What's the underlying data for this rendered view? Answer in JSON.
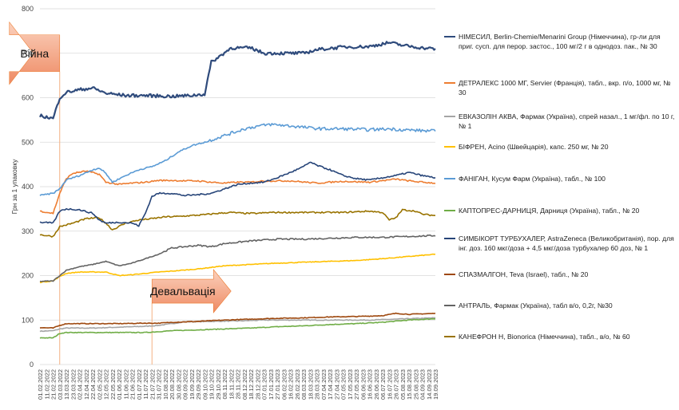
{
  "chart_data": {
    "type": "line",
    "ylabel": "Грн за 1 упаковку",
    "ylim": [
      0,
      800
    ],
    "yticks": [
      0,
      100,
      200,
      300,
      400,
      500,
      600,
      700,
      800
    ],
    "grid": "horizontal",
    "legend_position": "right",
    "x": [
      "01.02.2022",
      "11.02.2022",
      "21.02.2022",
      "03.03.2022",
      "13.03.2022",
      "23.03.2022",
      "02.04.2022",
      "12.04.2022",
      "22.04.2022",
      "02.05.2022",
      "12.05.2022",
      "22.05.2022",
      "01.06.2022",
      "11.06.2022",
      "21.06.2022",
      "01.07.2022",
      "11.07.2022",
      "21.07.2022",
      "31.07.2022",
      "10.08.2022",
      "20.08.2022",
      "30.08.2022",
      "09.09.2022",
      "19.09.2022",
      "29.09.2022",
      "09.10.2022",
      "19.10.2022",
      "29.10.2022",
      "08.11.2022",
      "18.11.2022",
      "28.11.2022",
      "08.12.2022",
      "18.12.2022",
      "28.12.2022",
      "07.01.2023",
      "17.01.2023",
      "27.01.2023",
      "06.02.2023",
      "16.02.2023",
      "26.02.2023",
      "08.03.2023",
      "18.03.2023",
      "28.03.2023",
      "07.04.2023",
      "17.04.2023",
      "27.04.2023",
      "07.05.2023",
      "17.05.2023",
      "27.05.2023",
      "06.06.2023",
      "16.06.2023",
      "26.06.2023",
      "06.07.2023",
      "16.07.2023",
      "26.07.2023",
      "05.08.2023",
      "15.08.2023",
      "25.08.2023",
      "04.09.2023",
      "14.09.2023",
      "19.09.2023"
    ],
    "annotations": [
      {
        "text": "Війна",
        "from": "03.03.2022",
        "to": "29.05.2022",
        "y": 700
      },
      {
        "text": "Девальвація",
        "from": "21.07.2022",
        "to": "18.11.2022",
        "y": 165
      }
    ],
    "series": [
      {
        "name": "НІМЕСИЛ, Berlin-Chemie/Menarini Group (Німеччина), гр-ли для приг. сусп. для перор. застос., 100 мг/2 г в однодоз. пак., № 30",
        "color": "#2f4b7c",
        "width": 2.2,
        "keypoints": [
          [
            0,
            560
          ],
          [
            2,
            553
          ],
          [
            3,
            600
          ],
          [
            4,
            612
          ],
          [
            6,
            618
          ],
          [
            8,
            622
          ],
          [
            10,
            610
          ],
          [
            13,
            605
          ],
          [
            16,
            605
          ],
          [
            20,
            603
          ],
          [
            23,
            605
          ],
          [
            25,
            608
          ],
          [
            26,
            680
          ],
          [
            27,
            690
          ],
          [
            29,
            712
          ],
          [
            32,
            712
          ],
          [
            34,
            700
          ],
          [
            37,
            700
          ],
          [
            40,
            700
          ],
          [
            42,
            708
          ],
          [
            46,
            714
          ],
          [
            50,
            715
          ],
          [
            53,
            724
          ],
          [
            55,
            718
          ],
          [
            58,
            712
          ],
          [
            60,
            710
          ]
        ]
      },
      {
        "name": "ДЕТРАЛЕКС 1000 МГ, Servier (Франція), табл., вкр. п/о, 1000 мг, № 30",
        "color": "#ed7d31",
        "width": 1.6,
        "keypoints": [
          [
            0,
            345
          ],
          [
            2,
            340
          ],
          [
            3,
            385
          ],
          [
            4,
            418
          ],
          [
            5,
            430
          ],
          [
            7,
            435
          ],
          [
            9,
            428
          ],
          [
            10,
            410
          ],
          [
            12,
            405
          ],
          [
            14,
            408
          ],
          [
            16,
            410
          ],
          [
            18,
            414
          ],
          [
            20,
            414
          ],
          [
            22,
            413
          ],
          [
            24,
            413
          ],
          [
            26,
            410
          ],
          [
            28,
            408
          ],
          [
            30,
            410
          ],
          [
            32,
            410
          ],
          [
            34,
            413
          ],
          [
            38,
            413
          ],
          [
            42,
            408
          ],
          [
            46,
            412
          ],
          [
            50,
            410
          ],
          [
            54,
            417
          ],
          [
            56,
            413
          ],
          [
            58,
            410
          ],
          [
            60,
            408
          ]
        ]
      },
      {
        "name": "ЕВКАЗОЛІН АКВА, Фармак (Україна), спрей назал., 1 мг/фл. по 10 г, № 1",
        "color": "#a5a5a5",
        "width": 1.6,
        "keypoints": [
          [
            0,
            75
          ],
          [
            2,
            76
          ],
          [
            3,
            80
          ],
          [
            4,
            82
          ],
          [
            8,
            82
          ],
          [
            12,
            84
          ],
          [
            16,
            86
          ],
          [
            18,
            88
          ],
          [
            20,
            92
          ],
          [
            22,
            96
          ],
          [
            26,
            97
          ],
          [
            30,
            98
          ],
          [
            34,
            100
          ],
          [
            38,
            100
          ],
          [
            42,
            100
          ],
          [
            46,
            100
          ],
          [
            50,
            100
          ],
          [
            54,
            102
          ],
          [
            58,
            104
          ],
          [
            60,
            105
          ]
        ]
      },
      {
        "name": "БІФРЕН, Acino (Швейцарія), капс. 250 мг, № 20",
        "color": "#ffc000",
        "width": 1.6,
        "keypoints": [
          [
            0,
            185
          ],
          [
            2,
            188
          ],
          [
            3,
            198
          ],
          [
            4,
            205
          ],
          [
            6,
            208
          ],
          [
            10,
            208
          ],
          [
            12,
            200
          ],
          [
            14,
            202
          ],
          [
            16,
            205
          ],
          [
            18,
            208
          ],
          [
            20,
            210
          ],
          [
            24,
            215
          ],
          [
            28,
            222
          ],
          [
            32,
            225
          ],
          [
            36,
            228
          ],
          [
            40,
            230
          ],
          [
            44,
            232
          ],
          [
            48,
            234
          ],
          [
            52,
            238
          ],
          [
            56,
            243
          ],
          [
            60,
            248
          ]
        ]
      },
      {
        "name": "ФАНІГАН, Кусум Фарм (Україна), табл., № 100",
        "color": "#5b9bd5",
        "width": 1.6,
        "keypoints": [
          [
            0,
            380
          ],
          [
            2,
            385
          ],
          [
            3,
            395
          ],
          [
            4,
            415
          ],
          [
            6,
            425
          ],
          [
            8,
            438
          ],
          [
            9,
            442
          ],
          [
            10,
            430
          ],
          [
            11,
            410
          ],
          [
            13,
            425
          ],
          [
            15,
            438
          ],
          [
            17,
            445
          ],
          [
            19,
            458
          ],
          [
            21,
            478
          ],
          [
            23,
            492
          ],
          [
            25,
            500
          ],
          [
            27,
            510
          ],
          [
            29,
            520
          ],
          [
            31,
            530
          ],
          [
            33,
            536
          ],
          [
            35,
            540
          ],
          [
            37,
            538
          ],
          [
            39,
            535
          ],
          [
            41,
            532
          ],
          [
            43,
            530
          ],
          [
            46,
            530
          ],
          [
            50,
            528
          ],
          [
            53,
            530
          ],
          [
            55,
            528
          ],
          [
            58,
            526
          ],
          [
            60,
            525
          ]
        ]
      },
      {
        "name": "КАПТОПРЕС-ДАРНИЦЯ, Дарниця (Україна), табл., № 20",
        "color": "#70ad47",
        "width": 1.6,
        "keypoints": [
          [
            0,
            60
          ],
          [
            2,
            60
          ],
          [
            3,
            70
          ],
          [
            4,
            72
          ],
          [
            8,
            72
          ],
          [
            12,
            72
          ],
          [
            16,
            72
          ],
          [
            18,
            74
          ],
          [
            20,
            76
          ],
          [
            24,
            78
          ],
          [
            28,
            80
          ],
          [
            32,
            82
          ],
          [
            36,
            85
          ],
          [
            40,
            87
          ],
          [
            44,
            90
          ],
          [
            48,
            92
          ],
          [
            52,
            95
          ],
          [
            56,
            100
          ],
          [
            60,
            103
          ]
        ]
      },
      {
        "name": "СИМБІКОРТ ТУРБУХАЛЕР, AstraZeneca (Великобританія), пор. для інг. доз. 160 мкг/доза + 4,5 мкг/доза турбухалер 60 доз, № 1",
        "color": "#264478",
        "width": 1.6,
        "keypoints": [
          [
            0,
            320
          ],
          [
            2,
            318
          ],
          [
            3,
            345
          ],
          [
            4,
            350
          ],
          [
            6,
            348
          ],
          [
            8,
            340
          ],
          [
            9,
            325
          ],
          [
            10,
            318
          ],
          [
            12,
            320
          ],
          [
            14,
            318
          ],
          [
            15,
            312
          ],
          [
            16,
            340
          ],
          [
            17,
            378
          ],
          [
            18,
            385
          ],
          [
            20,
            385
          ],
          [
            22,
            380
          ],
          [
            24,
            382
          ],
          [
            26,
            385
          ],
          [
            28,
            395
          ],
          [
            30,
            405
          ],
          [
            32,
            408
          ],
          [
            34,
            410
          ],
          [
            36,
            420
          ],
          [
            38,
            432
          ],
          [
            40,
            445
          ],
          [
            41,
            455
          ],
          [
            42,
            448
          ],
          [
            44,
            438
          ],
          [
            46,
            425
          ],
          [
            48,
            418
          ],
          [
            50,
            415
          ],
          [
            52,
            420
          ],
          [
            54,
            425
          ],
          [
            56,
            432
          ],
          [
            58,
            425
          ],
          [
            60,
            420
          ]
        ]
      },
      {
        "name": "СПАЗМАЛГОН, Teva (Israel), табл., № 20",
        "color": "#9e480e",
        "width": 1.6,
        "keypoints": [
          [
            0,
            83
          ],
          [
            2,
            82
          ],
          [
            3,
            88
          ],
          [
            4,
            92
          ],
          [
            8,
            92
          ],
          [
            12,
            92
          ],
          [
            16,
            93
          ],
          [
            18,
            93
          ],
          [
            20,
            95
          ],
          [
            24,
            97
          ],
          [
            28,
            100
          ],
          [
            32,
            102
          ],
          [
            36,
            104
          ],
          [
            40,
            105
          ],
          [
            44,
            107
          ],
          [
            48,
            108
          ],
          [
            52,
            110
          ],
          [
            54,
            115
          ],
          [
            56,
            113
          ],
          [
            58,
            114
          ],
          [
            60,
            115
          ]
        ]
      },
      {
        "name": "АНТРАЛЬ, Фармак (Україна), табл в/о, 0,2г, №30",
        "color": "#636363",
        "width": 1.6,
        "keypoints": [
          [
            0,
            187
          ],
          [
            2,
            188
          ],
          [
            3,
            200
          ],
          [
            4,
            212
          ],
          [
            6,
            220
          ],
          [
            8,
            225
          ],
          [
            10,
            232
          ],
          [
            12,
            222
          ],
          [
            14,
            228
          ],
          [
            16,
            238
          ],
          [
            18,
            248
          ],
          [
            20,
            262
          ],
          [
            22,
            265
          ],
          [
            24,
            268
          ],
          [
            26,
            265
          ],
          [
            28,
            272
          ],
          [
            30,
            275
          ],
          [
            32,
            278
          ],
          [
            34,
            280
          ],
          [
            36,
            282
          ],
          [
            40,
            282
          ],
          [
            44,
            284
          ],
          [
            48,
            286
          ],
          [
            52,
            286
          ],
          [
            56,
            288
          ],
          [
            60,
            290
          ]
        ]
      },
      {
        "name": "КАНЕФРОН Н, Bionorica (Німеччина), табл., в/о, № 60",
        "color": "#997300",
        "width": 1.6,
        "keypoints": [
          [
            0,
            292
          ],
          [
            2,
            288
          ],
          [
            3,
            310
          ],
          [
            5,
            318
          ],
          [
            7,
            328
          ],
          [
            9,
            330
          ],
          [
            10,
            318
          ],
          [
            11,
            303
          ],
          [
            13,
            318
          ],
          [
            15,
            325
          ],
          [
            17,
            328
          ],
          [
            19,
            332
          ],
          [
            21,
            333
          ],
          [
            23,
            335
          ],
          [
            25,
            337
          ],
          [
            27,
            340
          ],
          [
            29,
            342
          ],
          [
            31,
            340
          ],
          [
            33,
            340
          ],
          [
            35,
            342
          ],
          [
            38,
            342
          ],
          [
            42,
            342
          ],
          [
            46,
            342
          ],
          [
            50,
            345
          ],
          [
            52,
            342
          ],
          [
            53,
            325
          ],
          [
            54,
            330
          ],
          [
            55,
            348
          ],
          [
            57,
            345
          ],
          [
            58,
            338
          ],
          [
            60,
            335
          ]
        ]
      }
    ]
  }
}
